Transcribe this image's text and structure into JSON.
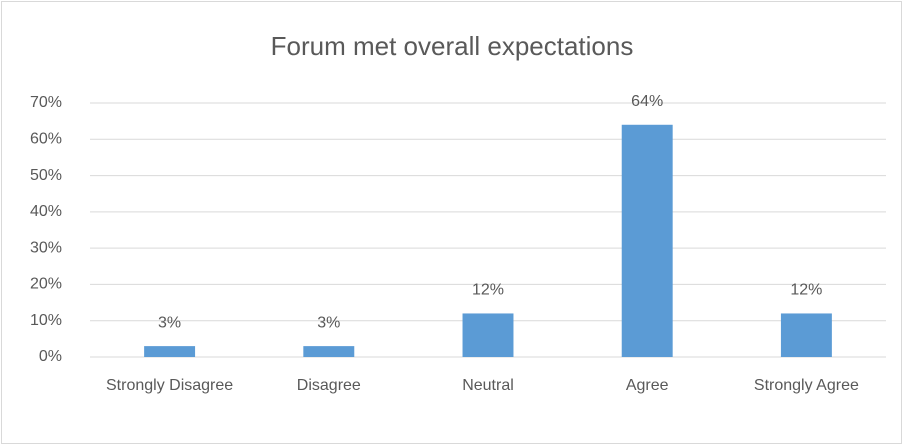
{
  "chart_data": {
    "type": "bar",
    "title": "Forum met overall expectations",
    "categories": [
      "Strongly Disagree",
      "Disagree",
      "Neutral",
      "Agree",
      "Strongly Agree"
    ],
    "values": [
      3,
      3,
      12,
      64,
      12
    ],
    "value_labels": [
      "3%",
      "3%",
      "12%",
      "64%",
      "12%"
    ],
    "color": "#5b9bd5",
    "ylim": [
      0,
      70
    ],
    "yticks": [
      {
        "value": 0,
        "label": "0%"
      },
      {
        "value": 10,
        "label": "10%"
      },
      {
        "value": 20,
        "label": "20%"
      },
      {
        "value": 30,
        "label": "30%"
      },
      {
        "value": 40,
        "label": "40%"
      },
      {
        "value": 50,
        "label": "50%"
      },
      {
        "value": 60,
        "label": "60%"
      },
      {
        "value": 70,
        "label": "70%"
      }
    ],
    "grid": true
  }
}
